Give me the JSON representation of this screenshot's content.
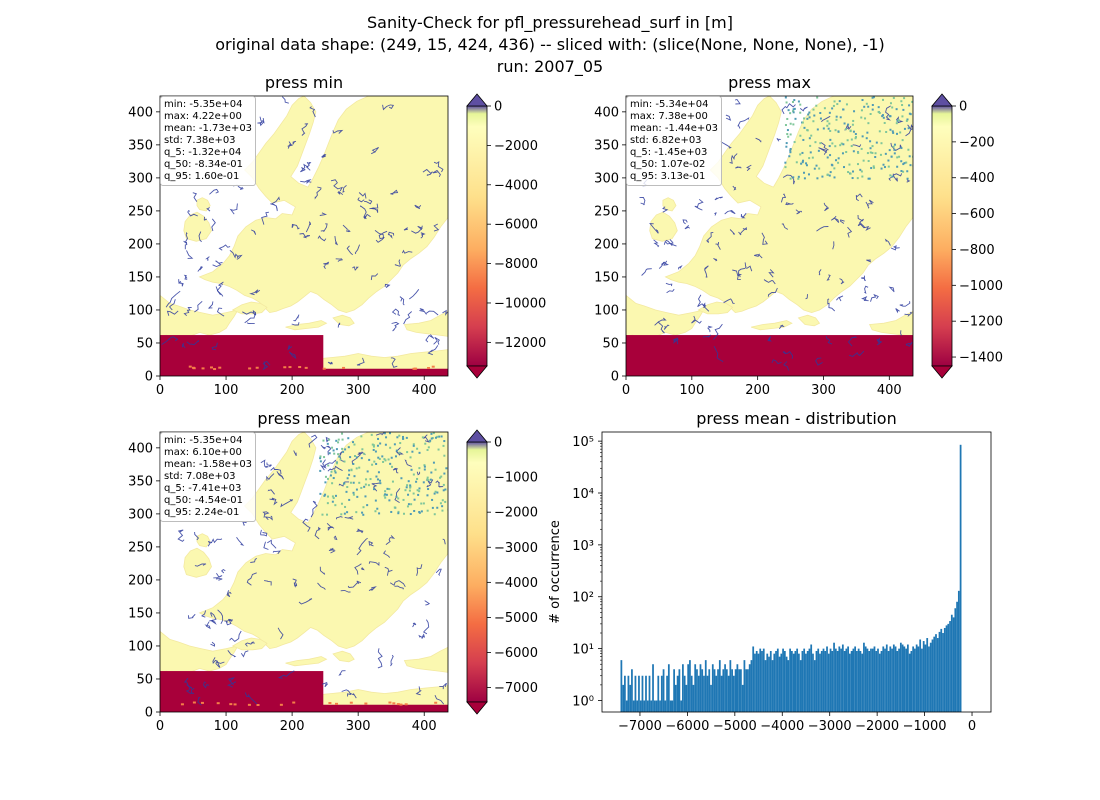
{
  "figure": {
    "title_lines": [
      "Sanity-Check for pfl_pressurehead_surf in [m]",
      "original data shape: (249, 15, 424, 436) -- sliced with: (slice(None, None, None), -1)",
      "run: 2007_05"
    ]
  },
  "colors": {
    "land": "#fbf8b0",
    "land_edge": "#f3e9a0",
    "river": "#2b3a9e",
    "river_light": "#4f9bb5",
    "green": "#7fc69a",
    "bottom_band": "#a8003a",
    "orange": "#f47f48",
    "hist_bar": "#1f77b4",
    "cbar_top": "#5e4fa2",
    "cbar_stops": [
      "#5e4fa2",
      "#fefebd",
      "#fdae61",
      "#f46d43",
      "#d53e4f",
      "#9e0142"
    ]
  },
  "chart_data": [
    {
      "type": "heatmap",
      "title": "press min",
      "xticks": [
        0,
        100,
        200,
        300,
        400
      ],
      "yticks": [
        0,
        50,
        100,
        150,
        200,
        250,
        300,
        350,
        400
      ],
      "xlim": [
        0,
        436
      ],
      "ylim": [
        0,
        424
      ],
      "stats": [
        "min: -5.35e+04",
        "max: 4.22e+00",
        "mean: -1.73e+03",
        "std: 7.38e+03",
        "q_5: -1.32e+04",
        "q_50: -8.34e-01",
        "q_95: 1.60e-01"
      ],
      "colorbar": {
        "range": [
          -13200,
          0
        ],
        "ticks": [
          0,
          -2000,
          -4000,
          -6000,
          -8000,
          -10000,
          -12000
        ],
        "tick_labels": [
          "0",
          "−2000",
          "−4000",
          "−6000",
          "−8000",
          "−10000",
          "−12000"
        ],
        "extend": "both"
      }
    },
    {
      "type": "heatmap",
      "title": "press max",
      "xticks": [
        0,
        100,
        200,
        300,
        400
      ],
      "yticks": [
        0,
        50,
        100,
        150,
        200,
        250,
        300,
        350,
        400
      ],
      "xlim": [
        0,
        436
      ],
      "ylim": [
        0,
        424
      ],
      "stats": [
        "min: -5.34e+04",
        "max: 7.38e+00",
        "mean: -1.44e+03",
        "std: 6.82e+03",
        "q_5: -1.45e+03",
        "q_50: 1.07e-02",
        "q_95: 3.13e-01"
      ],
      "colorbar": {
        "range": [
          -1450,
          0
        ],
        "ticks": [
          0,
          -200,
          -400,
          -600,
          -800,
          -1000,
          -1200,
          -1400
        ],
        "tick_labels": [
          "0",
          "−200",
          "−400",
          "−600",
          "−800",
          "−1000",
          "−1200",
          "−1400"
        ],
        "extend": "both"
      }
    },
    {
      "type": "heatmap",
      "title": "press mean",
      "xticks": [
        0,
        100,
        200,
        300,
        400
      ],
      "yticks": [
        0,
        50,
        100,
        150,
        200,
        250,
        300,
        350,
        400
      ],
      "xlim": [
        0,
        436
      ],
      "ylim": [
        0,
        424
      ],
      "stats": [
        "min: -5.35e+04",
        "max: 6.10e+00",
        "mean: -1.58e+03",
        "std: 7.08e+03",
        "q_5: -7.41e+03",
        "q_50: -4.54e-01",
        "q_95: 2.24e-01"
      ],
      "colorbar": {
        "range": [
          -7410,
          0
        ],
        "ticks": [
          0,
          -1000,
          -2000,
          -3000,
          -4000,
          -5000,
          -6000,
          -7000
        ],
        "tick_labels": [
          "0",
          "−1000",
          "−2000",
          "−3000",
          "−4000",
          "−5000",
          "−6000",
          "−7000"
        ],
        "extend": "both"
      }
    },
    {
      "type": "bar",
      "title": "press mean - distribution",
      "ylabel": "# of occurrence",
      "xlabel": "",
      "yscale": "log",
      "xlim": [
        -7800,
        400
      ],
      "ylim": [
        0.6,
        150000
      ],
      "xticks": [
        -7000,
        -6000,
        -5000,
        -4000,
        -3000,
        -2000,
        -1000,
        0
      ],
      "xtick_labels": [
        "−7000",
        "−6000",
        "−5000",
        "−4000",
        "−3000",
        "−2000",
        "−1000",
        "0"
      ],
      "yticks": [
        1,
        10,
        100,
        1000,
        10000,
        100000
      ],
      "ytick_labels": [
        "10⁰",
        "10¹",
        "10²",
        "10³",
        "10⁴",
        "10⁵"
      ],
      "bin_range": [
        -7410,
        0
      ],
      "bin_width": 37.05,
      "counts": [
        6,
        2,
        3,
        1,
        3,
        2,
        4,
        1,
        3,
        1,
        3,
        1,
        3,
        1,
        3,
        1,
        3,
        1,
        5,
        1,
        1,
        3,
        1,
        3,
        4,
        1,
        3,
        5,
        1,
        1,
        4,
        2,
        3,
        4,
        1,
        5,
        3,
        2,
        5,
        6,
        3,
        2,
        5,
        4,
        3,
        5,
        4,
        3,
        6,
        3,
        4,
        2,
        5,
        4,
        3,
        4,
        6,
        3,
        4,
        5,
        4,
        3,
        6,
        4,
        3,
        4,
        5,
        4,
        4,
        2,
        6,
        4,
        4,
        5,
        6,
        11,
        8,
        9,
        8,
        10,
        9,
        10,
        6,
        8,
        7,
        9,
        6,
        8,
        9,
        10,
        7,
        8,
        10,
        9,
        7,
        6,
        10,
        9,
        8,
        9,
        10,
        8,
        6,
        9,
        10,
        8,
        9,
        10,
        12,
        8,
        6,
        9,
        10,
        8,
        9,
        10,
        9,
        11,
        8,
        10,
        9,
        13,
        10,
        9,
        11,
        10,
        12,
        9,
        10,
        11,
        8,
        9,
        10,
        11,
        9,
        10,
        9,
        8,
        13,
        11,
        10,
        9,
        10,
        10,
        11,
        9,
        10,
        8,
        9,
        11,
        10,
        12,
        9,
        11,
        10,
        12,
        11,
        9,
        10,
        13,
        12,
        11,
        10,
        12,
        8,
        9,
        11,
        10,
        12,
        11,
        15,
        10,
        14,
        12,
        16,
        11,
        13,
        15,
        17,
        19,
        16,
        21,
        24,
        20,
        25,
        28,
        30,
        34,
        45,
        40,
        60,
        80,
        130,
        85000
      ]
    }
  ]
}
